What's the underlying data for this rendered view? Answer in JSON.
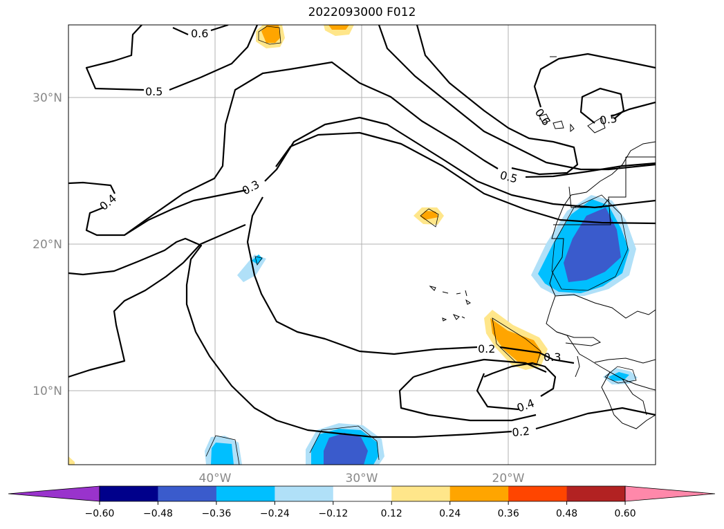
{
  "title": "2022093000 F012",
  "map": {
    "lat_labels": [
      "30°N",
      "20°N",
      "10°N"
    ],
    "lon_labels": [
      "40°W",
      "30°W",
      "20°W"
    ],
    "contour_labels": [
      "0.6",
      "0.5",
      "0.3",
      "0.4",
      "0.5",
      "0.6",
      "0.5",
      "0.2",
      "0.3",
      "0.4",
      "0.2"
    ]
  },
  "colorbar": {
    "ticks": [
      "−0.60",
      "−0.48",
      "−0.36",
      "−0.24",
      "−0.12",
      "0.12",
      "0.24",
      "0.36",
      "0.48",
      "0.60"
    ],
    "colors": [
      "#9933cc",
      "#00008b",
      "#3a5bcc",
      "#00bfff",
      "#b0e0f8",
      "#ffffff",
      "#ffe68a",
      "#ffa500",
      "#ff4500",
      "#b22222",
      "#ff88aa"
    ]
  }
}
